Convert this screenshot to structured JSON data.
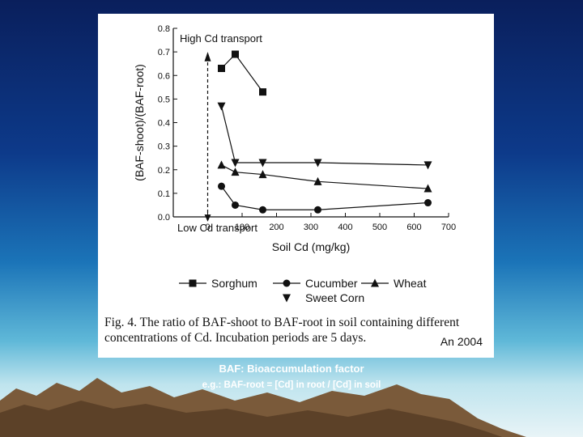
{
  "chart_data": {
    "type": "line",
    "xlabel": "Soil Cd (mg/kg)",
    "ylabel": "(BAF-shoot)/(BAF-root)",
    "xlim": [
      -100,
      700
    ],
    "ylim": [
      0.0,
      0.8
    ],
    "xticks": [
      0,
      100,
      200,
      300,
      400,
      500,
      600,
      700
    ],
    "yticks": [
      0.0,
      0.1,
      0.2,
      0.3,
      0.4,
      0.5,
      0.6,
      0.7,
      0.8
    ],
    "grid": false,
    "legend_placement": "bottom",
    "series": [
      {
        "name": "Sorghum",
        "marker": "square",
        "x": [
          40,
          80,
          160
        ],
        "y": [
          0.63,
          0.69,
          0.53
        ]
      },
      {
        "name": "Cucumber",
        "marker": "circle",
        "x": [
          40,
          80,
          160,
          320,
          640
        ],
        "y": [
          0.13,
          0.05,
          0.03,
          0.03,
          0.06
        ]
      },
      {
        "name": "Wheat",
        "marker": "triangle-up",
        "x": [
          40,
          80,
          160,
          320,
          640
        ],
        "y": [
          0.22,
          0.19,
          0.18,
          0.15,
          0.12
        ]
      },
      {
        "name": "Sweet Corn",
        "marker": "triangle-down",
        "x": [
          40,
          80,
          160,
          320,
          640
        ],
        "y": [
          0.47,
          0.23,
          0.23,
          0.23,
          0.22
        ]
      }
    ],
    "annotations": {
      "high": "High Cd transport",
      "low": "Low Cd transport"
    }
  },
  "caption": "Fig. 4.  The ratio of BAF-shoot to BAF-root in soil containing different concentrations of Cd. Incubation periods are 5 days.",
  "credit": "An 2004",
  "footnote_title": "BAF: Bioaccumulation factor",
  "footnote_example": "e.g.: BAF-root = [Cd] in root / [Cd] in soil",
  "colors": {
    "ink": "#111111",
    "panel": "#ffffff",
    "mountain": "#7a5a3a"
  }
}
